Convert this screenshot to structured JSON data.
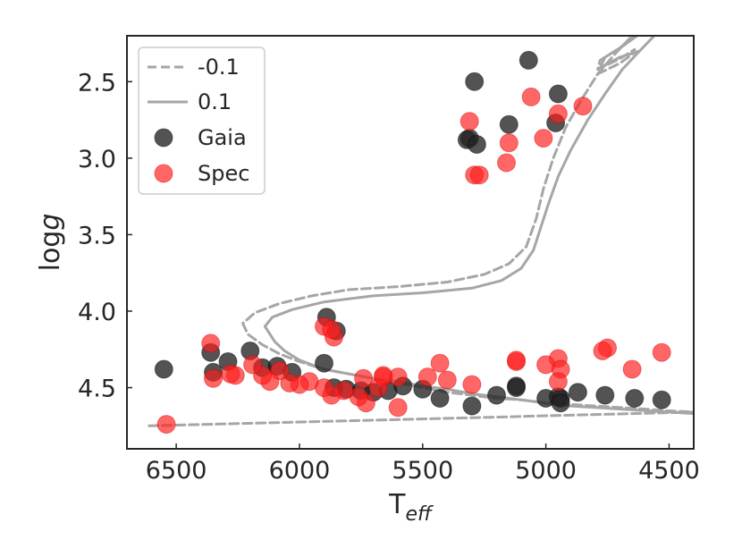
{
  "chart_data": {
    "type": "scatter",
    "title": "",
    "xlabel": "T",
    "xlabel_sub": "eff",
    "ylabel_prefix": "log",
    "ylabel_var": "g",
    "xlim": [
      6700,
      4400
    ],
    "ylim": [
      4.9,
      2.2
    ],
    "x_ticks": [
      6500,
      6000,
      5500,
      5000,
      4500
    ],
    "x_tick_labels": [
      "6500",
      "6000",
      "5500",
      "5000",
      "4500"
    ],
    "y_ticks": [
      2.5,
      3.0,
      3.5,
      4.0,
      4.5
    ],
    "y_tick_labels": [
      "2.5",
      "3.0",
      "3.5",
      "4.0",
      "4.5"
    ],
    "grid": false,
    "legend_position": "top-left",
    "colors": {
      "axes": "#262626",
      "isochrone": "#a6a6a6",
      "gaia": "#222222",
      "spec": "#ff1f1f"
    },
    "lines": [
      {
        "name": "-0.1",
        "style": "dashed",
        "points": [
          [
            6610,
            4.75
          ],
          [
            4400,
            4.66
          ],
          [
            4520,
            4.65
          ],
          [
            4600,
            4.64
          ],
          [
            4700,
            4.63
          ],
          [
            4800,
            4.62
          ],
          [
            4900,
            4.61
          ],
          [
            5000,
            4.6
          ],
          [
            5100,
            4.58
          ],
          [
            5200,
            4.57
          ],
          [
            5300,
            4.55
          ],
          [
            5400,
            4.53
          ],
          [
            5500,
            4.5
          ],
          [
            5600,
            4.47
          ],
          [
            5700,
            4.44
          ],
          [
            5800,
            4.41
          ],
          [
            5900,
            4.38
          ],
          [
            6000,
            4.33
          ],
          [
            6080,
            4.28
          ],
          [
            6150,
            4.22
          ],
          [
            6210,
            4.15
          ],
          [
            6230,
            4.08
          ],
          [
            6180,
            4.01
          ],
          [
            6080,
            3.95
          ],
          [
            5950,
            3.9
          ],
          [
            5800,
            3.86
          ],
          [
            5600,
            3.84
          ],
          [
            5400,
            3.81
          ],
          [
            5250,
            3.76
          ],
          [
            5150,
            3.69
          ],
          [
            5080,
            3.58
          ],
          [
            5040,
            3.4
          ],
          [
            5010,
            3.2
          ],
          [
            4970,
            3.0
          ],
          [
            4920,
            2.8
          ],
          [
            4860,
            2.63
          ],
          [
            4790,
            2.45
          ],
          [
            4720,
            2.32
          ],
          [
            4650,
            2.2
          ]
        ]
      },
      {
        "name": "0.1",
        "style": "solid",
        "points": [
          [
            4400,
            4.67
          ],
          [
            4500,
            4.66
          ],
          [
            4600,
            4.65
          ],
          [
            4700,
            4.64
          ],
          [
            4800,
            4.63
          ],
          [
            4900,
            4.62
          ],
          [
            5000,
            4.6
          ],
          [
            5100,
            4.58
          ],
          [
            5200,
            4.56
          ],
          [
            5300,
            4.54
          ],
          [
            5400,
            4.51
          ],
          [
            5500,
            4.49
          ],
          [
            5600,
            4.46
          ],
          [
            5700,
            4.44
          ],
          [
            5800,
            4.41
          ],
          [
            5900,
            4.38
          ],
          [
            6000,
            4.32
          ],
          [
            6060,
            4.26
          ],
          [
            6100,
            4.2
          ],
          [
            6140,
            4.1
          ],
          [
            6110,
            4.04
          ],
          [
            6030,
            3.99
          ],
          [
            5900,
            3.94
          ],
          [
            5700,
            3.9
          ],
          [
            5500,
            3.88
          ],
          [
            5300,
            3.85
          ],
          [
            5180,
            3.8
          ],
          [
            5100,
            3.72
          ],
          [
            5050,
            3.6
          ],
          [
            5020,
            3.45
          ],
          [
            4990,
            3.3
          ],
          [
            4950,
            3.12
          ],
          [
            4900,
            2.95
          ],
          [
            4830,
            2.75
          ],
          [
            4760,
            2.58
          ],
          [
            4690,
            2.42
          ],
          [
            4620,
            2.3
          ],
          [
            4560,
            2.2
          ]
        ]
      },
      {
        "name": "-0.1",
        "style": "dashed",
        "points": [
          [
            4790,
            2.45
          ],
          [
            4700,
            2.38
          ],
          [
            4640,
            2.31
          ],
          [
            4640,
            2.29
          ],
          [
            4700,
            2.35
          ],
          [
            4790,
            2.42
          ],
          [
            4780,
            2.36
          ],
          [
            4700,
            2.28
          ],
          [
            4640,
            2.2
          ]
        ]
      },
      {
        "name": "0.1",
        "style": "solid",
        "points": [
          [
            4620,
            2.3
          ],
          [
            4700,
            2.34
          ],
          [
            4780,
            2.41
          ],
          [
            4760,
            2.34
          ],
          [
            4690,
            2.27
          ],
          [
            4630,
            2.2
          ]
        ]
      }
    ],
    "legend": [
      {
        "label": "-0.1",
        "kind": "dashed-line"
      },
      {
        "label": "0.1",
        "kind": "solid-line"
      },
      {
        "label": "Gaia",
        "kind": "gaia-marker"
      },
      {
        "label": "Spec",
        "kind": "spec-marker"
      }
    ],
    "series": [
      {
        "name": "Gaia",
        "x": [
          4960,
          4530,
          4760,
          4640,
          5070,
          4940,
          5290,
          5310,
          5150,
          4950,
          5320,
          5280,
          5850,
          5890,
          6550,
          6200,
          6350,
          6290,
          6150,
          6090,
          6030,
          5900,
          5860,
          5810,
          5750,
          5700,
          5640,
          5580,
          5500,
          5430,
          5300,
          5200,
          5120,
          5120,
          5000,
          4950,
          4940,
          4870,
          6360
        ],
        "y": [
          2.77,
          4.58,
          4.55,
          4.57,
          2.36,
          4.57,
          2.5,
          2.87,
          2.78,
          2.58,
          2.88,
          2.91,
          4.13,
          4.04,
          4.38,
          4.26,
          4.4,
          4.33,
          4.37,
          4.36,
          4.4,
          4.34,
          4.5,
          4.51,
          4.52,
          4.53,
          4.52,
          4.49,
          4.51,
          4.57,
          4.62,
          4.55,
          4.49,
          4.5,
          4.57,
          4.56,
          4.6,
          4.53,
          4.27
        ]
      },
      {
        "name": "Spec",
        "x": [
          5060,
          4950,
          4850,
          5010,
          5310,
          5150,
          5160,
          5290,
          5270,
          4650,
          4530,
          4750,
          4770,
          4950,
          4940,
          4950,
          5000,
          5120,
          5120,
          5430,
          5400,
          5300,
          5480,
          5600,
          5600,
          5660,
          5740,
          5680,
          5660,
          5730,
          5760,
          5820,
          5870,
          5900,
          5900,
          5860,
          5870,
          5960,
          6000,
          6040,
          6080,
          6120,
          6150,
          6190,
          6260,
          6280,
          6350,
          6360,
          6540
        ],
        "y": [
          2.6,
          2.71,
          2.66,
          2.87,
          2.76,
          2.9,
          3.03,
          3.11,
          3.11,
          4.38,
          4.27,
          4.24,
          4.26,
          4.31,
          4.38,
          4.46,
          4.35,
          4.33,
          4.32,
          4.34,
          4.45,
          4.48,
          4.43,
          4.43,
          4.63,
          4.43,
          4.44,
          4.5,
          4.42,
          4.6,
          4.56,
          4.52,
          4.55,
          4.5,
          4.1,
          4.17,
          4.12,
          4.46,
          4.48,
          4.47,
          4.39,
          4.46,
          4.42,
          4.35,
          4.42,
          4.41,
          4.44,
          4.21,
          4.74
        ]
      }
    ]
  }
}
